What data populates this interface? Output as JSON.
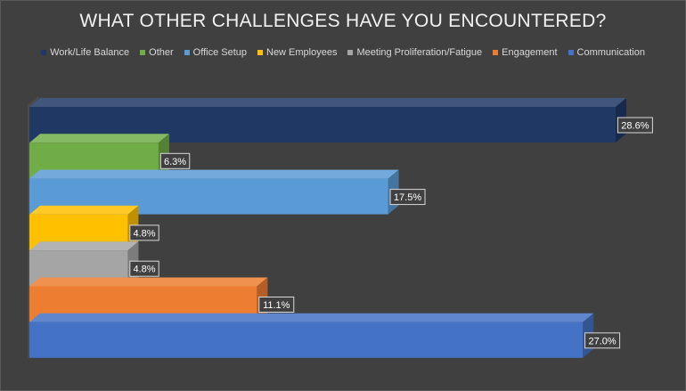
{
  "chart_data": {
    "type": "bar",
    "orientation": "horizontal",
    "three_d": true,
    "title": "WHAT OTHER CHALLENGES HAVE YOU ENCOUNTERED?",
    "legend_position": "top",
    "grid": false,
    "xlim": [
      0,
      30
    ],
    "unit_suffix": "%",
    "categories": [
      "Work/Life Balance",
      "Other",
      "Office Setup",
      "New Employees",
      "Meeting Proliferation/Fatigue",
      "Engagement",
      "Communication"
    ],
    "values": [
      28.6,
      6.3,
      17.5,
      4.8,
      4.8,
      11.1,
      27.0
    ],
    "labels": [
      "28.6%",
      "6.3%",
      "17.5%",
      "4.8%",
      "4.8%",
      "11.1%",
      "27.0%"
    ],
    "colors": [
      "#203864",
      "#70ad47",
      "#5b9bd5",
      "#ffc000",
      "#a5a5a5",
      "#ed7d31",
      "#4472c4"
    ]
  }
}
